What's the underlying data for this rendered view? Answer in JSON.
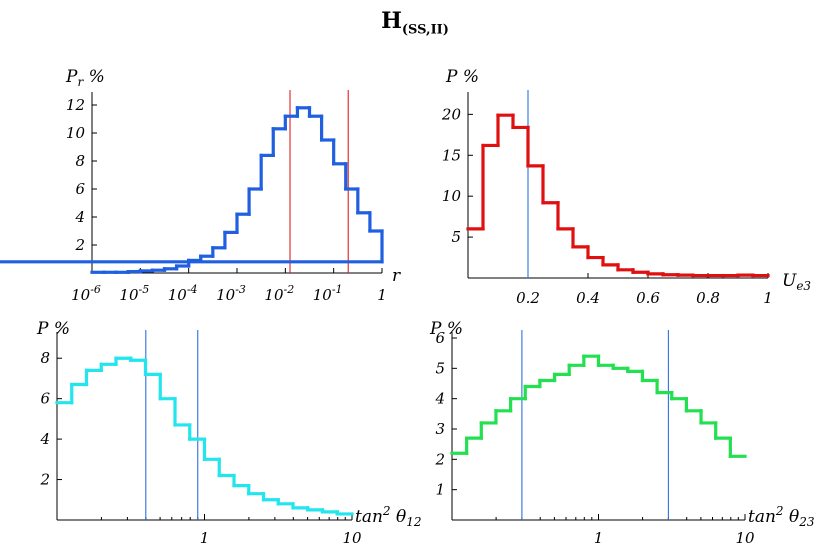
{
  "title_main": "H",
  "title_sub": "(SS,II)",
  "chart_data": [
    {
      "type": "histogram",
      "ylabel": "P_r %",
      "xlabel": "r",
      "x_scale": "log",
      "color": "#1f5fe0",
      "vlines": [
        0.0125,
        0.2
      ],
      "vline_color": "#e02020",
      "ylim": [
        0,
        12.5
      ],
      "x_ticks": [
        {
          "exp": "-6"
        },
        {
          "exp": "-5"
        },
        {
          "exp": "-4"
        },
        {
          "exp": "-3"
        },
        {
          "exp": "-2"
        },
        {
          "exp": "-1"
        },
        {
          "plain": "1"
        }
      ],
      "y_ticks": [
        "2",
        "4",
        "6",
        "8",
        "10",
        "12"
      ],
      "bins_log10_x": [
        -6,
        -5.75,
        -5.5,
        -5.25,
        -5,
        -4.75,
        -4.5,
        -4.25,
        -4,
        -3.75,
        -3.5,
        -3.25,
        -3,
        -2.75,
        -2.5,
        -2.25,
        -2,
        -1.75,
        -1.5,
        -1.25,
        -1,
        -0.75,
        -0.5,
        -0.25,
        0
      ],
      "values": [
        0.05,
        0.05,
        0.05,
        0.1,
        0.15,
        0.2,
        0.3,
        0.5,
        0.9,
        1.2,
        1.8,
        2.9,
        4.2,
        6.0,
        8.4,
        10.3,
        11.2,
        11.8,
        11.2,
        9.5,
        7.8,
        6.0,
        4.3,
        3.0,
        0.8
      ]
    },
    {
      "type": "histogram",
      "ylabel": "P %",
      "xlabel": "U_e3",
      "x_scale": "linear",
      "color": "#e01010",
      "vlines": [
        0.2
      ],
      "vline_color": "#3070e0",
      "ylim": [
        0,
        22
      ],
      "x_ticks": [
        "0.2",
        "0.4",
        "0.6",
        "0.8",
        "1"
      ],
      "y_ticks": [
        "5",
        "10",
        "15",
        "20"
      ],
      "bin_width": 0.05,
      "values": [
        6.0,
        16.2,
        19.9,
        18.4,
        13.7,
        9.2,
        6.0,
        3.8,
        2.5,
        1.6,
        1.0,
        0.7,
        0.5,
        0.4,
        0.35,
        0.3,
        0.3,
        0.3,
        0.35,
        0.3
      ]
    },
    {
      "type": "histogram",
      "ylabel": "P %",
      "xlabel": "tan^2 θ_12",
      "x_scale": "log",
      "color": "#22e5ee",
      "vlines": [
        0.4,
        0.9
      ],
      "vline_color": "#3070e0",
      "ylim": [
        0,
        9
      ],
      "x_ticks": [
        "1",
        "10"
      ],
      "y_ticks": [
        "2",
        "4",
        "6",
        "8"
      ],
      "bins_log10_x": [
        -1,
        -0.9,
        -0.8,
        -0.7,
        -0.6,
        -0.5,
        -0.4,
        -0.3,
        -0.2,
        -0.1,
        0,
        0.1,
        0.2,
        0.3,
        0.4,
        0.5,
        0.6,
        0.7,
        0.8,
        0.9,
        1.0
      ],
      "values": [
        5.8,
        6.7,
        7.4,
        7.7,
        8.0,
        7.9,
        7.2,
        6.0,
        4.7,
        4.0,
        3.0,
        2.2,
        1.7,
        1.3,
        1.0,
        0.8,
        0.6,
        0.5,
        0.4,
        0.3
      ]
    },
    {
      "type": "histogram",
      "ylabel": "P %",
      "xlabel": "tan^2 θ_23",
      "x_scale": "log",
      "color": "#22e050",
      "vlines": [
        0.3,
        3.0
      ],
      "vline_color": "#3070e0",
      "ylim": [
        0,
        6
      ],
      "x_ticks": [
        "1",
        "10"
      ],
      "y_ticks": [
        "1",
        "2",
        "3",
        "4",
        "5",
        "6"
      ],
      "bins_log10_x": [
        -1,
        -0.9,
        -0.8,
        -0.7,
        -0.6,
        -0.5,
        -0.4,
        -0.3,
        -0.2,
        -0.1,
        0,
        0.1,
        0.2,
        0.3,
        0.4,
        0.5,
        0.6,
        0.7,
        0.8,
        0.9,
        1.0
      ],
      "values": [
        2.2,
        2.7,
        3.2,
        3.6,
        4.0,
        4.4,
        4.6,
        4.8,
        5.1,
        5.4,
        5.1,
        5.0,
        4.9,
        4.6,
        4.2,
        4.0,
        3.6,
        3.2,
        2.7,
        2.1
      ]
    }
  ]
}
